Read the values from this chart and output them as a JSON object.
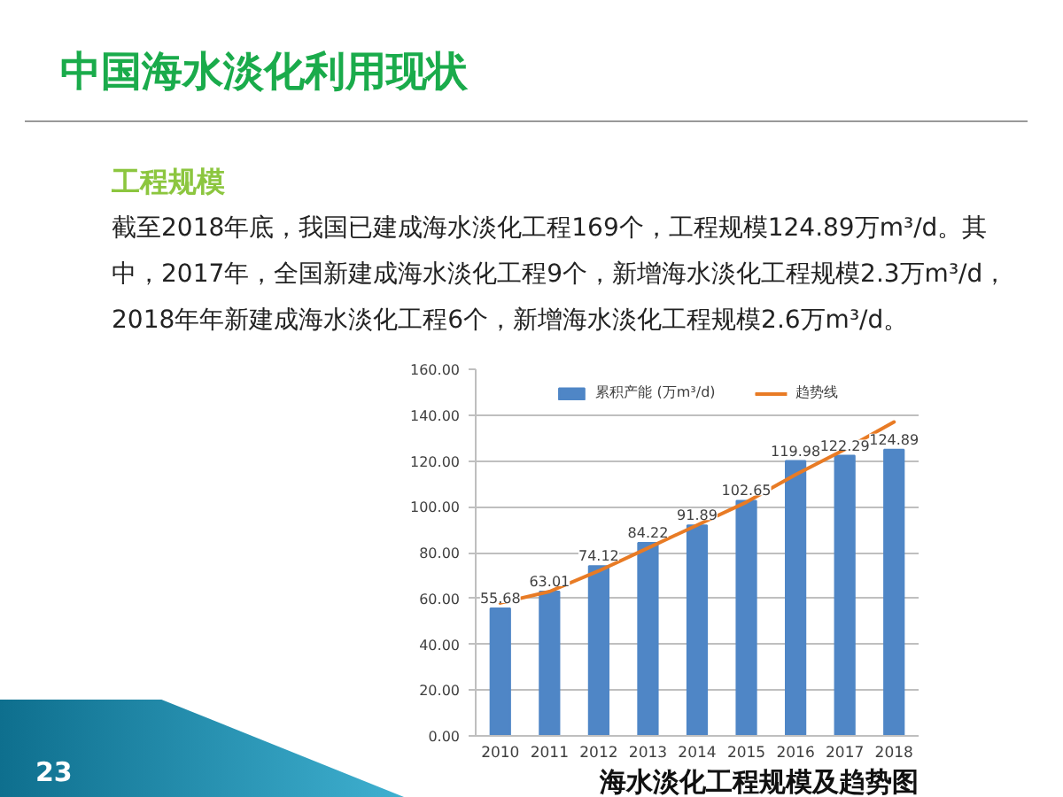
{
  "chart_data": {
    "type": "bar",
    "title": "中国海水淡化利用现状",
    "subtitle": "工程规模",
    "annotations": [
      "截至2018年底，我国已建成海水淡化工程169个，工程规模124.89万m³/d。其中，2017年，全国新建成海水淡化工程9个，新增海水淡化工程规模2.3万m³/d，2018年年新建成海水淡化工程6个，新增海水淡化工程规模2.6万m³/d。",
      "海水淡化工程规模及趋势图",
      "23"
    ],
    "categories": [
      "2010",
      "2011",
      "2012",
      "2013",
      "2014",
      "2015",
      "2016",
      "2017",
      "2018"
    ],
    "series": [
      {
        "name": "累积产能 (万m³/d)",
        "color": "#4f86c6",
        "values": [
          55.68,
          63.01,
          74.12,
          84.22,
          91.89,
          102.65,
          119.98,
          122.29,
          124.89
        ],
        "value_labels": [
          "55.68",
          "63.01",
          "74.12",
          "84.22",
          "91.89",
          "102.65",
          "119.98",
          "122.29",
          "124.89"
        ]
      },
      {
        "name": "趋势线",
        "type": "line",
        "color": "#e87b25",
        "values": [
          58,
          63,
          72,
          82,
          92,
          102,
          114,
          125,
          137
        ]
      }
    ],
    "ylim": [
      0,
      160
    ],
    "yticks": [
      {
        "value": 0,
        "label": "0.00"
      },
      {
        "value": 20,
        "label": "20.00"
      },
      {
        "value": 40,
        "label": "40.00"
      },
      {
        "value": 60,
        "label": "60.00"
      },
      {
        "value": 80,
        "label": "80.00"
      },
      {
        "value": 100,
        "label": "100.00"
      },
      {
        "value": 120,
        "label": "120.00"
      },
      {
        "value": 140,
        "label": "140.00"
      },
      {
        "value": 160,
        "label": "160.00"
      }
    ],
    "grid": "y",
    "legend": "top"
  }
}
